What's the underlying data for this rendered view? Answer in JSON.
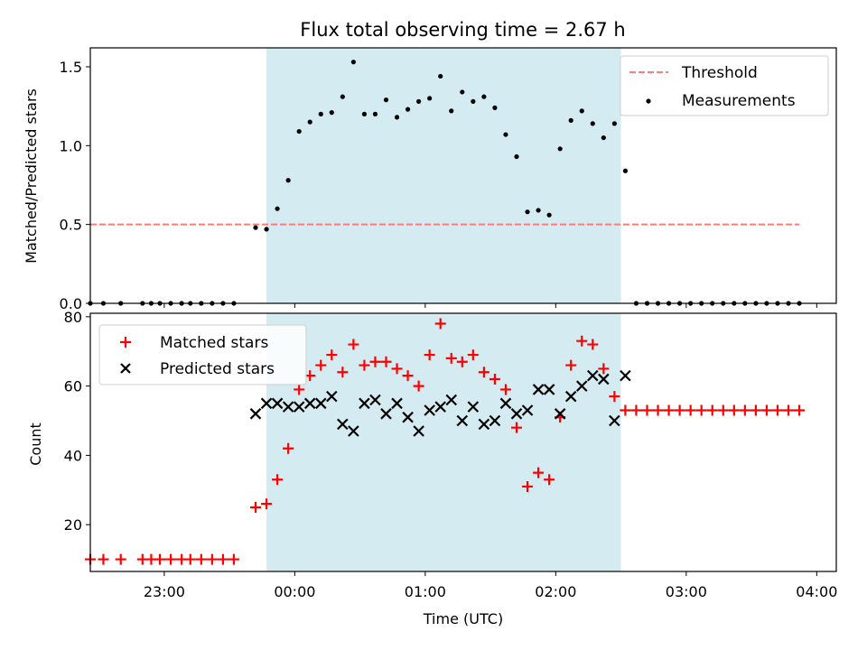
{
  "colors": {
    "highlight": "#add8e6",
    "threshold": "#ff7b7b",
    "measurement": "#000000",
    "matched": "#ff0000",
    "predicted": "#000000"
  },
  "chart_data": [
    {
      "type": "scatter",
      "title": "Flux total observing time = 2.67 h",
      "xlabel": "",
      "ylabel": "Matched/Predicted stars",
      "ylim": [
        0.0,
        1.62
      ],
      "xlim": [
        "22:26",
        "04:09"
      ],
      "yticks": [
        "0.0",
        "0.5",
        "1.0",
        "1.5"
      ],
      "highlight_span": [
        "23:47",
        "02:30"
      ],
      "legend_position": "top-right",
      "threshold": {
        "name": "Threshold",
        "style": "dashed",
        "y": 0.5,
        "x": [
          "22:26",
          "03:52"
        ]
      },
      "series": [
        {
          "name": "Measurements",
          "marker": "dot",
          "points": [
            [
              "22:26",
              0
            ],
            [
              "22:32",
              0
            ],
            [
              "22:40",
              0
            ],
            [
              "22:50",
              0
            ],
            [
              "22:54",
              0
            ],
            [
              "22:58",
              0
            ],
            [
              "23:03",
              0
            ],
            [
              "23:08",
              0
            ],
            [
              "23:12",
              0
            ],
            [
              "23:17",
              0
            ],
            [
              "23:22",
              0
            ],
            [
              "23:27",
              0
            ],
            [
              "23:32",
              0
            ],
            [
              "23:42",
              0.48
            ],
            [
              "23:47",
              0.47
            ],
            [
              "23:52",
              0.6
            ],
            [
              "23:57",
              0.78
            ],
            [
              "00:02",
              1.09
            ],
            [
              "00:07",
              1.15
            ],
            [
              "00:12",
              1.2
            ],
            [
              "00:17",
              1.21
            ],
            [
              "00:22",
              1.31
            ],
            [
              "00:27",
              1.53
            ],
            [
              "00:32",
              1.2
            ],
            [
              "00:37",
              1.2
            ],
            [
              "00:42",
              1.29
            ],
            [
              "00:47",
              1.18
            ],
            [
              "00:52",
              1.23
            ],
            [
              "00:57",
              1.28
            ],
            [
              "01:02",
              1.3
            ],
            [
              "01:07",
              1.44
            ],
            [
              "01:12",
              1.22
            ],
            [
              "01:17",
              1.34
            ],
            [
              "01:22",
              1.28
            ],
            [
              "01:27",
              1.31
            ],
            [
              "01:32",
              1.24
            ],
            [
              "01:37",
              1.07
            ],
            [
              "01:42",
              0.93
            ],
            [
              "01:47",
              0.58
            ],
            [
              "01:52",
              0.59
            ],
            [
              "01:57",
              0.56
            ],
            [
              "02:02",
              0.98
            ],
            [
              "02:07",
              1.16
            ],
            [
              "02:12",
              1.22
            ],
            [
              "02:17",
              1.14
            ],
            [
              "02:22",
              1.05
            ],
            [
              "02:27",
              1.14
            ],
            [
              "02:32",
              0.84
            ],
            [
              "02:37",
              0
            ],
            [
              "02:42",
              0
            ],
            [
              "02:47",
              0
            ],
            [
              "02:52",
              0
            ],
            [
              "02:57",
              0
            ],
            [
              "03:02",
              0
            ],
            [
              "03:07",
              0
            ],
            [
              "03:12",
              0
            ],
            [
              "03:17",
              0
            ],
            [
              "03:22",
              0
            ],
            [
              "03:27",
              0
            ],
            [
              "03:32",
              0
            ],
            [
              "03:37",
              0
            ],
            [
              "03:42",
              0
            ],
            [
              "03:47",
              0
            ],
            [
              "03:52",
              0
            ]
          ]
        }
      ]
    },
    {
      "type": "scatter",
      "title": "",
      "xlabel": "Time (UTC)",
      "ylabel": "Count",
      "ylim": [
        6.5,
        81
      ],
      "xlim": [
        "22:26",
        "04:09"
      ],
      "yticks": [
        "20",
        "40",
        "60",
        "80"
      ],
      "xticks": [
        "23:00",
        "00:00",
        "01:00",
        "02:00",
        "03:00",
        "04:00"
      ],
      "highlight_span": [
        "23:47",
        "02:30"
      ],
      "legend_position": "top-left",
      "series": [
        {
          "name": "Matched stars",
          "marker": "plus",
          "points": [
            [
              "22:26",
              10
            ],
            [
              "22:32",
              10
            ],
            [
              "22:40",
              10
            ],
            [
              "22:50",
              10
            ],
            [
              "22:54",
              10
            ],
            [
              "22:58",
              10
            ],
            [
              "23:03",
              10
            ],
            [
              "23:08",
              10
            ],
            [
              "23:12",
              10
            ],
            [
              "23:17",
              10
            ],
            [
              "23:22",
              10
            ],
            [
              "23:27",
              10
            ],
            [
              "23:32",
              10
            ],
            [
              "23:42",
              25
            ],
            [
              "23:47",
              26
            ],
            [
              "23:52",
              33
            ],
            [
              "23:57",
              42
            ],
            [
              "00:02",
              59
            ],
            [
              "00:07",
              63
            ],
            [
              "00:12",
              66
            ],
            [
              "00:17",
              69
            ],
            [
              "00:22",
              64
            ],
            [
              "00:27",
              72
            ],
            [
              "00:32",
              66
            ],
            [
              "00:37",
              67
            ],
            [
              "00:42",
              67
            ],
            [
              "00:47",
              65
            ],
            [
              "00:52",
              63
            ],
            [
              "00:57",
              60
            ],
            [
              "01:02",
              69
            ],
            [
              "01:07",
              78
            ],
            [
              "01:12",
              68
            ],
            [
              "01:17",
              67
            ],
            [
              "01:22",
              69
            ],
            [
              "01:27",
              64
            ],
            [
              "01:32",
              62
            ],
            [
              "01:37",
              59
            ],
            [
              "01:42",
              48
            ],
            [
              "01:47",
              31
            ],
            [
              "01:52",
              35
            ],
            [
              "01:57",
              33
            ],
            [
              "02:02",
              51
            ],
            [
              "02:07",
              66
            ],
            [
              "02:12",
              73
            ],
            [
              "02:17",
              72
            ],
            [
              "02:22",
              65
            ],
            [
              "02:27",
              57
            ],
            [
              "02:32",
              53
            ],
            [
              "02:37",
              53
            ],
            [
              "02:42",
              53
            ],
            [
              "02:47",
              53
            ],
            [
              "02:52",
              53
            ],
            [
              "02:57",
              53
            ],
            [
              "03:02",
              53
            ],
            [
              "03:07",
              53
            ],
            [
              "03:12",
              53
            ],
            [
              "03:17",
              53
            ],
            [
              "03:22",
              53
            ],
            [
              "03:27",
              53
            ],
            [
              "03:32",
              53
            ],
            [
              "03:37",
              53
            ],
            [
              "03:42",
              53
            ],
            [
              "03:47",
              53
            ],
            [
              "03:52",
              53
            ]
          ]
        },
        {
          "name": "Predicted stars",
          "marker": "x",
          "points": [
            [
              "23:42",
              52
            ],
            [
              "23:47",
              55
            ],
            [
              "23:52",
              55
            ],
            [
              "23:57",
              54
            ],
            [
              "00:02",
              54
            ],
            [
              "00:07",
              55
            ],
            [
              "00:12",
              55
            ],
            [
              "00:17",
              57
            ],
            [
              "00:22",
              49
            ],
            [
              "00:27",
              47
            ],
            [
              "00:32",
              55
            ],
            [
              "00:37",
              56
            ],
            [
              "00:42",
              52
            ],
            [
              "00:47",
              55
            ],
            [
              "00:52",
              51
            ],
            [
              "00:57",
              47
            ],
            [
              "01:02",
              53
            ],
            [
              "01:07",
              54
            ],
            [
              "01:12",
              56
            ],
            [
              "01:17",
              50
            ],
            [
              "01:22",
              54
            ],
            [
              "01:27",
              49
            ],
            [
              "01:32",
              50
            ],
            [
              "01:37",
              55
            ],
            [
              "01:42",
              52
            ],
            [
              "01:47",
              53
            ],
            [
              "01:52",
              59
            ],
            [
              "01:57",
              59
            ],
            [
              "02:02",
              52
            ],
            [
              "02:07",
              57
            ],
            [
              "02:12",
              60
            ],
            [
              "02:17",
              63
            ],
            [
              "02:22",
              62
            ],
            [
              "02:27",
              50
            ],
            [
              "02:32",
              63
            ]
          ]
        }
      ]
    }
  ]
}
